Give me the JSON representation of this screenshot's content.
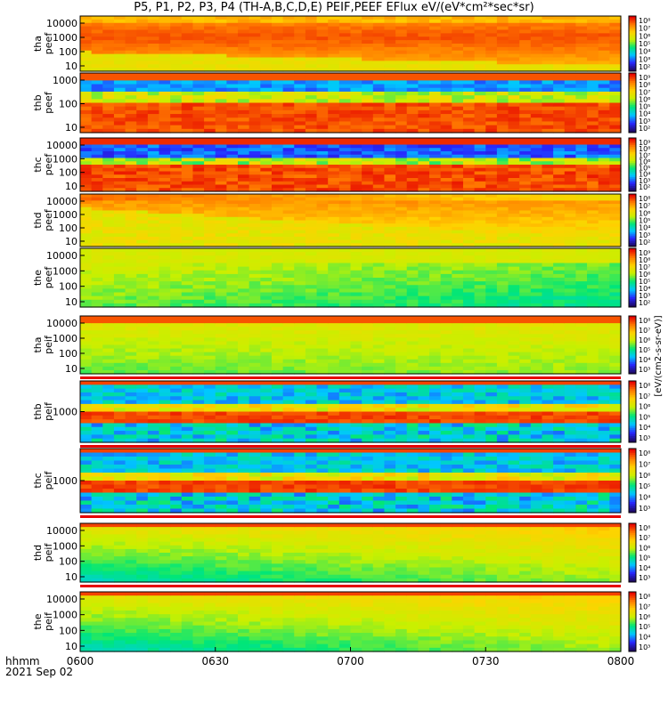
{
  "title": "P5, P1, P2, P3, P4 (TH-A,B,C,D,E) PEIF,PEEF EFlux eV/(eV*cm²*sec*sr)",
  "time_axis": {
    "ticks": [
      "0600",
      "0630",
      "0700",
      "0730",
      "0800"
    ],
    "label": "hhmm",
    "date": "2021 Sep 02"
  },
  "colorbar_label": "[eV/(cm2-s-sr-eV)]",
  "colormap": [
    "#1e0a64",
    "#2828ff",
    "#00c8ff",
    "#00e678",
    "#c8f000",
    "#ffd200",
    "#ff7800",
    "#e60000"
  ],
  "chart_data": [
    {
      "type": "heatmap",
      "probe": "tha",
      "product": "peef",
      "yticks": [
        "10000",
        "1000",
        "100",
        "10"
      ],
      "cbar_ticks": [
        "10⁸",
        "10⁷",
        "10⁶",
        "10⁵",
        "10⁴",
        "10³",
        "10²"
      ],
      "pattern": "electron_hot_tha",
      "band": false
    },
    {
      "type": "heatmap",
      "probe": "thb",
      "product": "peef",
      "yticks": [
        "1000",
        "100",
        "10"
      ],
      "cbar_ticks": [
        "10⁹",
        "10⁸",
        "10⁷",
        "10⁶",
        "10⁵",
        "10⁴",
        "10³",
        "10²"
      ],
      "pattern": "electron_band_thb",
      "band": false
    },
    {
      "type": "heatmap",
      "probe": "thc",
      "product": "peef",
      "yticks": [
        "10000",
        "1000",
        "100",
        "10"
      ],
      "cbar_ticks": [
        "10⁹",
        "10⁸",
        "10⁷",
        "10⁶",
        "10⁵",
        "10⁴",
        "10³",
        "10²"
      ],
      "pattern": "electron_band_thc",
      "band": true
    },
    {
      "type": "heatmap",
      "probe": "thd",
      "product": "peef",
      "yticks": [
        "10000",
        "1000",
        "100",
        "10"
      ],
      "cbar_ticks": [
        "10⁸",
        "10⁷",
        "10⁶",
        "10⁵",
        "10⁴",
        "10³",
        "10²"
      ],
      "pattern": "electron_hot_thd",
      "band": false
    },
    {
      "type": "heatmap",
      "probe": "the",
      "product": "peef",
      "yticks": [
        "10000",
        "1000",
        "100",
        "10"
      ],
      "cbar_ticks": [
        "10⁹",
        "10⁸",
        "10⁷",
        "10⁶",
        "10⁵",
        "10⁴",
        "10³",
        "10²"
      ],
      "pattern": "electron_warm",
      "band": false
    },
    {
      "type": "heatmap",
      "probe": "tha",
      "product": "peif",
      "yticks": [
        "10000",
        "1000",
        "100",
        "10"
      ],
      "cbar_ticks": [
        "10⁸",
        "10⁷",
        "10⁶",
        "10⁵",
        "10⁴",
        "10³"
      ],
      "pattern": "ion_warm",
      "band": true
    },
    {
      "type": "heatmap",
      "probe": "thb",
      "product": "peif",
      "yticks": [
        "1000"
      ],
      "cbar_ticks": [
        "10⁸",
        "10⁷",
        "10⁶",
        "10⁵",
        "10⁴",
        "10³"
      ],
      "pattern": "ion_band",
      "band": true
    },
    {
      "type": "heatmap",
      "probe": "thc",
      "product": "peif",
      "yticks": [
        "1000"
      ],
      "cbar_ticks": [
        "10⁸",
        "10⁷",
        "10⁶",
        "10⁵",
        "10⁴",
        "10³"
      ],
      "pattern": "ion_band",
      "band": true
    },
    {
      "type": "heatmap",
      "probe": "thd",
      "product": "peif",
      "yticks": [
        "10000",
        "1000",
        "100",
        "10"
      ],
      "cbar_ticks": [
        "10⁸",
        "10⁷",
        "10⁶",
        "10⁵",
        "10⁴",
        "10³"
      ],
      "pattern": "ion_cool",
      "band": true
    },
    {
      "type": "heatmap",
      "probe": "the",
      "product": "peif",
      "yticks": [
        "10000",
        "1000",
        "100",
        "10"
      ],
      "cbar_ticks": [
        "10⁸",
        "10⁷",
        "10⁶",
        "10⁵",
        "10⁴",
        "10³"
      ],
      "pattern": "ion_cool",
      "band": true
    }
  ]
}
